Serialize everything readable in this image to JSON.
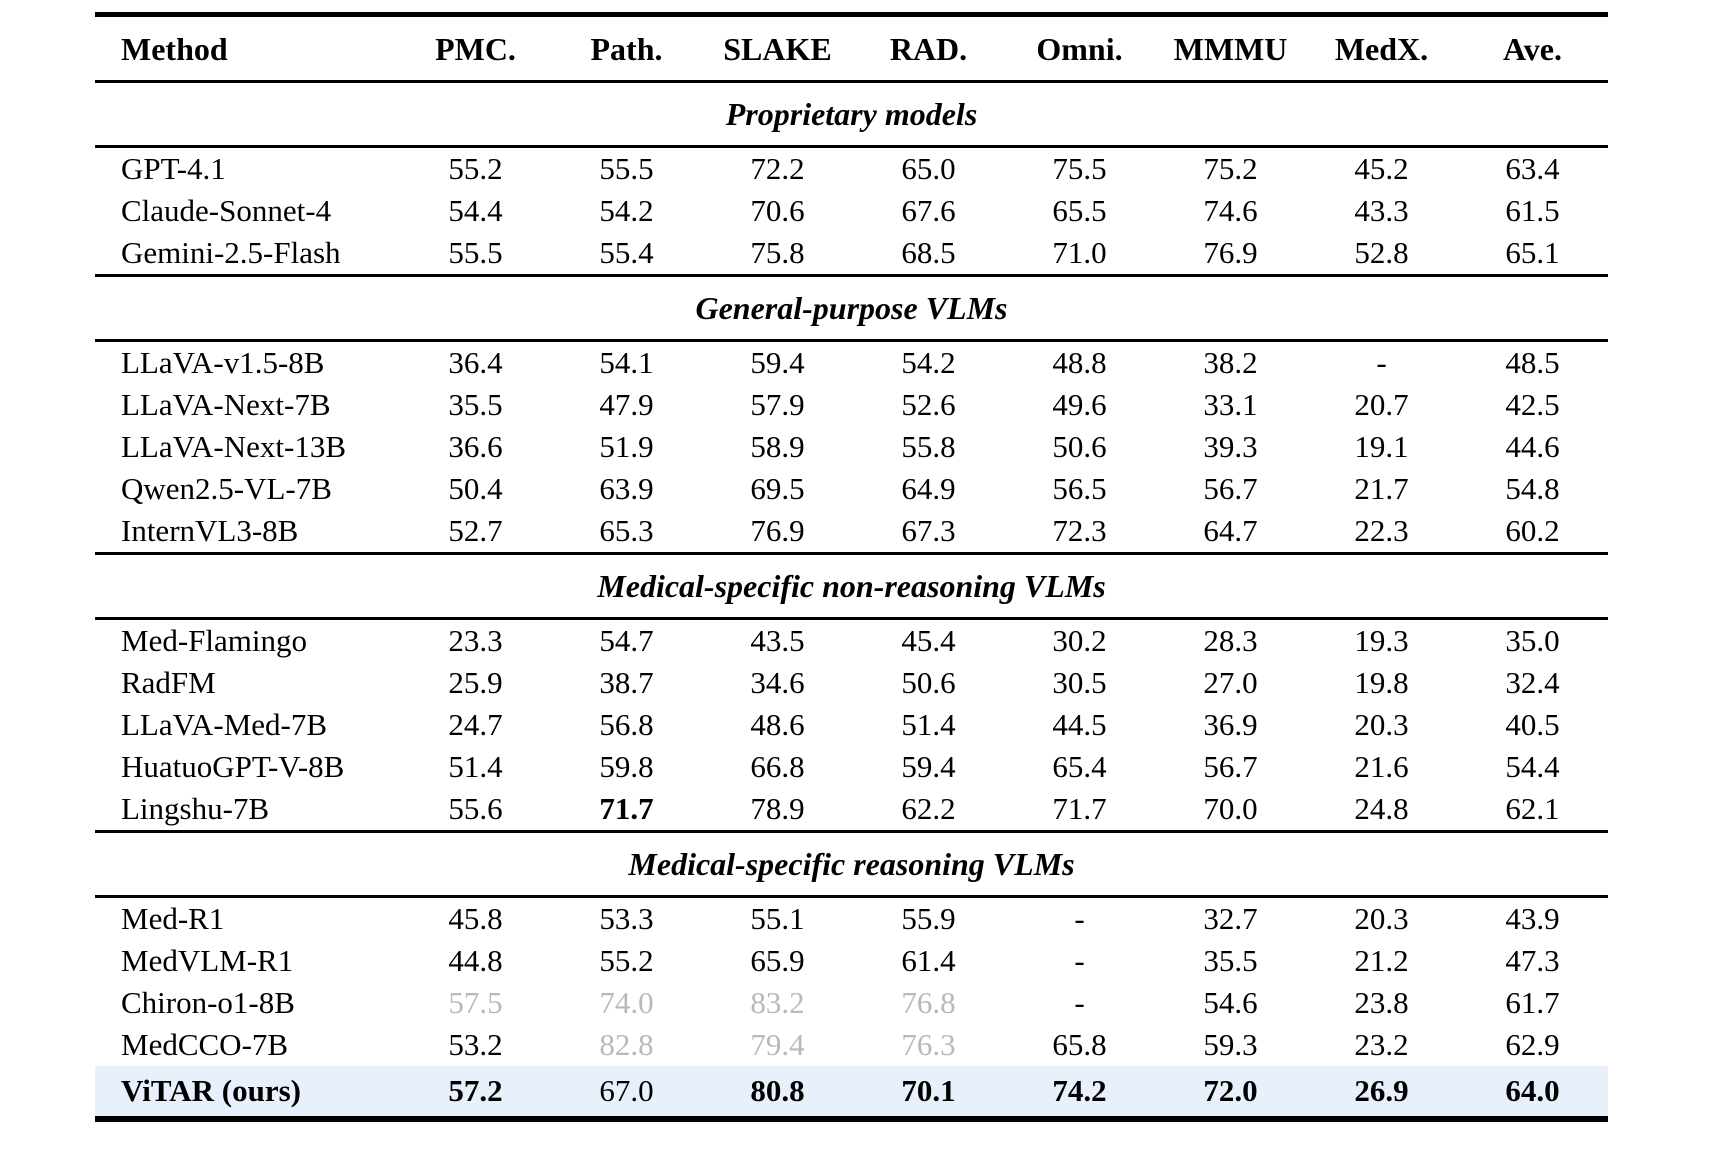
{
  "table": {
    "headers": [
      "Method",
      "PMC.",
      "Path.",
      "SLAKE",
      "RAD.",
      "Omni.",
      "MMMU",
      "MedX.",
      "Ave."
    ],
    "sections": [
      {
        "title": "Proprietary models",
        "rows": [
          {
            "method": "GPT-4.1",
            "values": [
              "55.2",
              "55.5",
              "72.2",
              "65.0",
              "75.5",
              "75.2",
              "45.2",
              "63.4"
            ]
          },
          {
            "method": "Claude-Sonnet-4",
            "values": [
              "54.4",
              "54.2",
              "70.6",
              "67.6",
              "65.5",
              "74.6",
              "43.3",
              "61.5"
            ]
          },
          {
            "method": "Gemini-2.5-Flash",
            "values": [
              "55.5",
              "55.4",
              "75.8",
              "68.5",
              "71.0",
              "76.9",
              "52.8",
              "65.1"
            ]
          }
        ]
      },
      {
        "title": "General-purpose VLMs",
        "rows": [
          {
            "method": "LLaVA-v1.5-8B",
            "values": [
              "36.4",
              "54.1",
              "59.4",
              "54.2",
              "48.8",
              "38.2",
              "-",
              "48.5"
            ]
          },
          {
            "method": "LLaVA-Next-7B",
            "values": [
              "35.5",
              "47.9",
              "57.9",
              "52.6",
              "49.6",
              "33.1",
              "20.7",
              "42.5"
            ]
          },
          {
            "method": "LLaVA-Next-13B",
            "values": [
              "36.6",
              "51.9",
              "58.9",
              "55.8",
              "50.6",
              "39.3",
              "19.1",
              "44.6"
            ]
          },
          {
            "method": "Qwen2.5-VL-7B",
            "values": [
              "50.4",
              "63.9",
              "69.5",
              "64.9",
              "56.5",
              "56.7",
              "21.7",
              "54.8"
            ]
          },
          {
            "method": "InternVL3-8B",
            "values": [
              "52.7",
              "65.3",
              "76.9",
              "67.3",
              "72.3",
              "64.7",
              "22.3",
              "60.2"
            ]
          }
        ]
      },
      {
        "title": "Medical-specific non-reasoning VLMs",
        "rows": [
          {
            "method": "Med-Flamingo",
            "values": [
              "23.3",
              "54.7",
              "43.5",
              "45.4",
              "30.2",
              "28.3",
              "19.3",
              "35.0"
            ]
          },
          {
            "method": "RadFM",
            "values": [
              "25.9",
              "38.7",
              "34.6",
              "50.6",
              "30.5",
              "27.0",
              "19.8",
              "32.4"
            ]
          },
          {
            "method": "LLaVA-Med-7B",
            "values": [
              "24.7",
              "56.8",
              "48.6",
              "51.4",
              "44.5",
              "36.9",
              "20.3",
              "40.5"
            ]
          },
          {
            "method": "HuatuoGPT-V-8B",
            "values": [
              "51.4",
              "59.8",
              "66.8",
              "59.4",
              "65.4",
              "56.7",
              "21.6",
              "54.4"
            ]
          },
          {
            "method": "Lingshu-7B",
            "values": [
              "55.6",
              {
                "text": "71.7",
                "style": "bold"
              },
              "78.9",
              "62.2",
              "71.7",
              "70.0",
              "24.8",
              "62.1"
            ]
          }
        ]
      },
      {
        "title": "Medical-specific reasoning VLMs",
        "rows": [
          {
            "method": "Med-R1",
            "values": [
              "45.8",
              "53.3",
              "55.1",
              "55.9",
              "-",
              "32.7",
              "20.3",
              "43.9"
            ]
          },
          {
            "method": "MedVLM-R1",
            "values": [
              "44.8",
              "55.2",
              "65.9",
              "61.4",
              "-",
              "35.5",
              "21.2",
              "47.3"
            ]
          },
          {
            "method": "Chiron-o1-8B",
            "values": [
              {
                "text": "57.5",
                "style": "muted"
              },
              {
                "text": "74.0",
                "style": "muted"
              },
              {
                "text": "83.2",
                "style": "muted"
              },
              {
                "text": "76.8",
                "style": "muted"
              },
              "-",
              "54.6",
              "23.8",
              "61.7"
            ]
          },
          {
            "method": "MedCCO-7B",
            "values": [
              "53.2",
              {
                "text": "82.8",
                "style": "muted"
              },
              {
                "text": "79.4",
                "style": "muted"
              },
              {
                "text": "76.3",
                "style": "muted"
              },
              "65.8",
              "59.3",
              "23.2",
              "62.9"
            ]
          },
          {
            "method": "ViTAR (ours)",
            "method_style": "bold",
            "highlight": true,
            "values": [
              {
                "text": "57.2",
                "style": "bold"
              },
              "67.0",
              {
                "text": "80.8",
                "style": "bold"
              },
              {
                "text": "70.1",
                "style": "bold"
              },
              {
                "text": "74.2",
                "style": "bold"
              },
              {
                "text": "72.0",
                "style": "bold"
              },
              {
                "text": "26.9",
                "style": "bold"
              },
              {
                "text": "64.0",
                "style": "bold"
              }
            ]
          }
        ]
      }
    ]
  },
  "colors": {
    "highlight_row": "#e8f1fb",
    "muted_value": "#b9b9b9",
    "rule": "#000000"
  }
}
